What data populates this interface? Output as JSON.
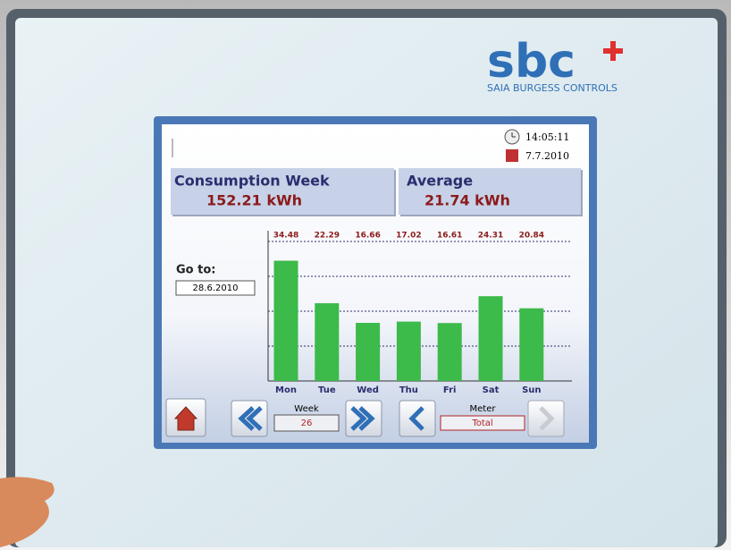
{
  "logo": {
    "brand": "sbc",
    "tagline": "SAIA BURGESS CONTROLS"
  },
  "status": {
    "time": "14:05:11",
    "date": "7.7.2010"
  },
  "summary": [
    {
      "title": "Consumption Week",
      "value": "152.21 kWh"
    },
    {
      "title": "Average",
      "value": "21.74 kWh"
    }
  ],
  "goto": {
    "label": "Go to:",
    "date": "28.6.2010"
  },
  "navigation": {
    "week_label": "Week",
    "week": "26",
    "meter_label": "Meter",
    "meter": "Total"
  },
  "chart_data": {
    "type": "bar",
    "categories": [
      "Mon",
      "Tue",
      "Wed",
      "Thu",
      "Fri",
      "Sat",
      "Sun"
    ],
    "values": [
      34.48,
      22.29,
      16.66,
      17.02,
      16.61,
      24.31,
      20.84
    ],
    "color": "#3cba4a",
    "value_label_color": "#8b1a1a",
    "ylim": [
      0,
      40
    ],
    "yticks": [
      10,
      20,
      30,
      40
    ],
    "grid": true
  }
}
